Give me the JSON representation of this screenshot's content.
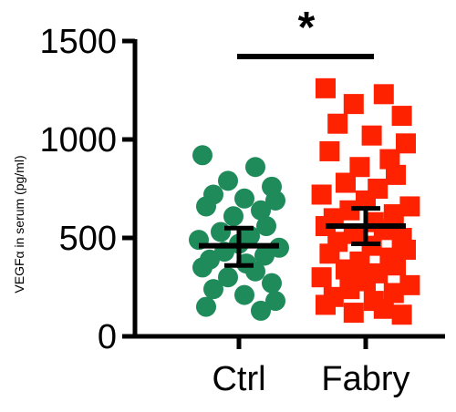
{
  "chart_data": {
    "type": "scatter",
    "ylabel": "VEGFα in serum (pg/ml)",
    "ylim": [
      0,
      1500
    ],
    "yticks": [
      0,
      500,
      1000,
      1500
    ],
    "ytick_labels": [
      "0",
      "500",
      "1000",
      "1500"
    ],
    "categories": [
      "Ctrl",
      "Fabry"
    ],
    "significance": "*",
    "series": [
      {
        "category": "Ctrl",
        "color": "#1f8a5a",
        "marker": "circle",
        "mean": 460,
        "error": [
          360,
          550
        ],
        "values": [
          920,
          860,
          790,
          760,
          720,
          700,
          690,
          660,
          640,
          610,
          560,
          530,
          510,
          490,
          470,
          450,
          430,
          410,
          390,
          370,
          350,
          330,
          300,
          270,
          240,
          210,
          180,
          150,
          130
        ]
      },
      {
        "category": "Fabry",
        "color": "#ff2200",
        "marker": "square",
        "mean": 560,
        "error": [
          470,
          650
        ],
        "values": [
          1260,
          1230,
          1180,
          1120,
          1080,
          1020,
          980,
          940,
          900,
          860,
          820,
          780,
          750,
          720,
          690,
          660,
          640,
          620,
          600,
          580,
          560,
          540,
          520,
          500,
          480,
          460,
          440,
          420,
          400,
          380,
          360,
          340,
          320,
          300,
          280,
          260,
          240,
          220,
          200,
          180,
          160,
          140,
          120,
          110
        ]
      }
    ]
  }
}
